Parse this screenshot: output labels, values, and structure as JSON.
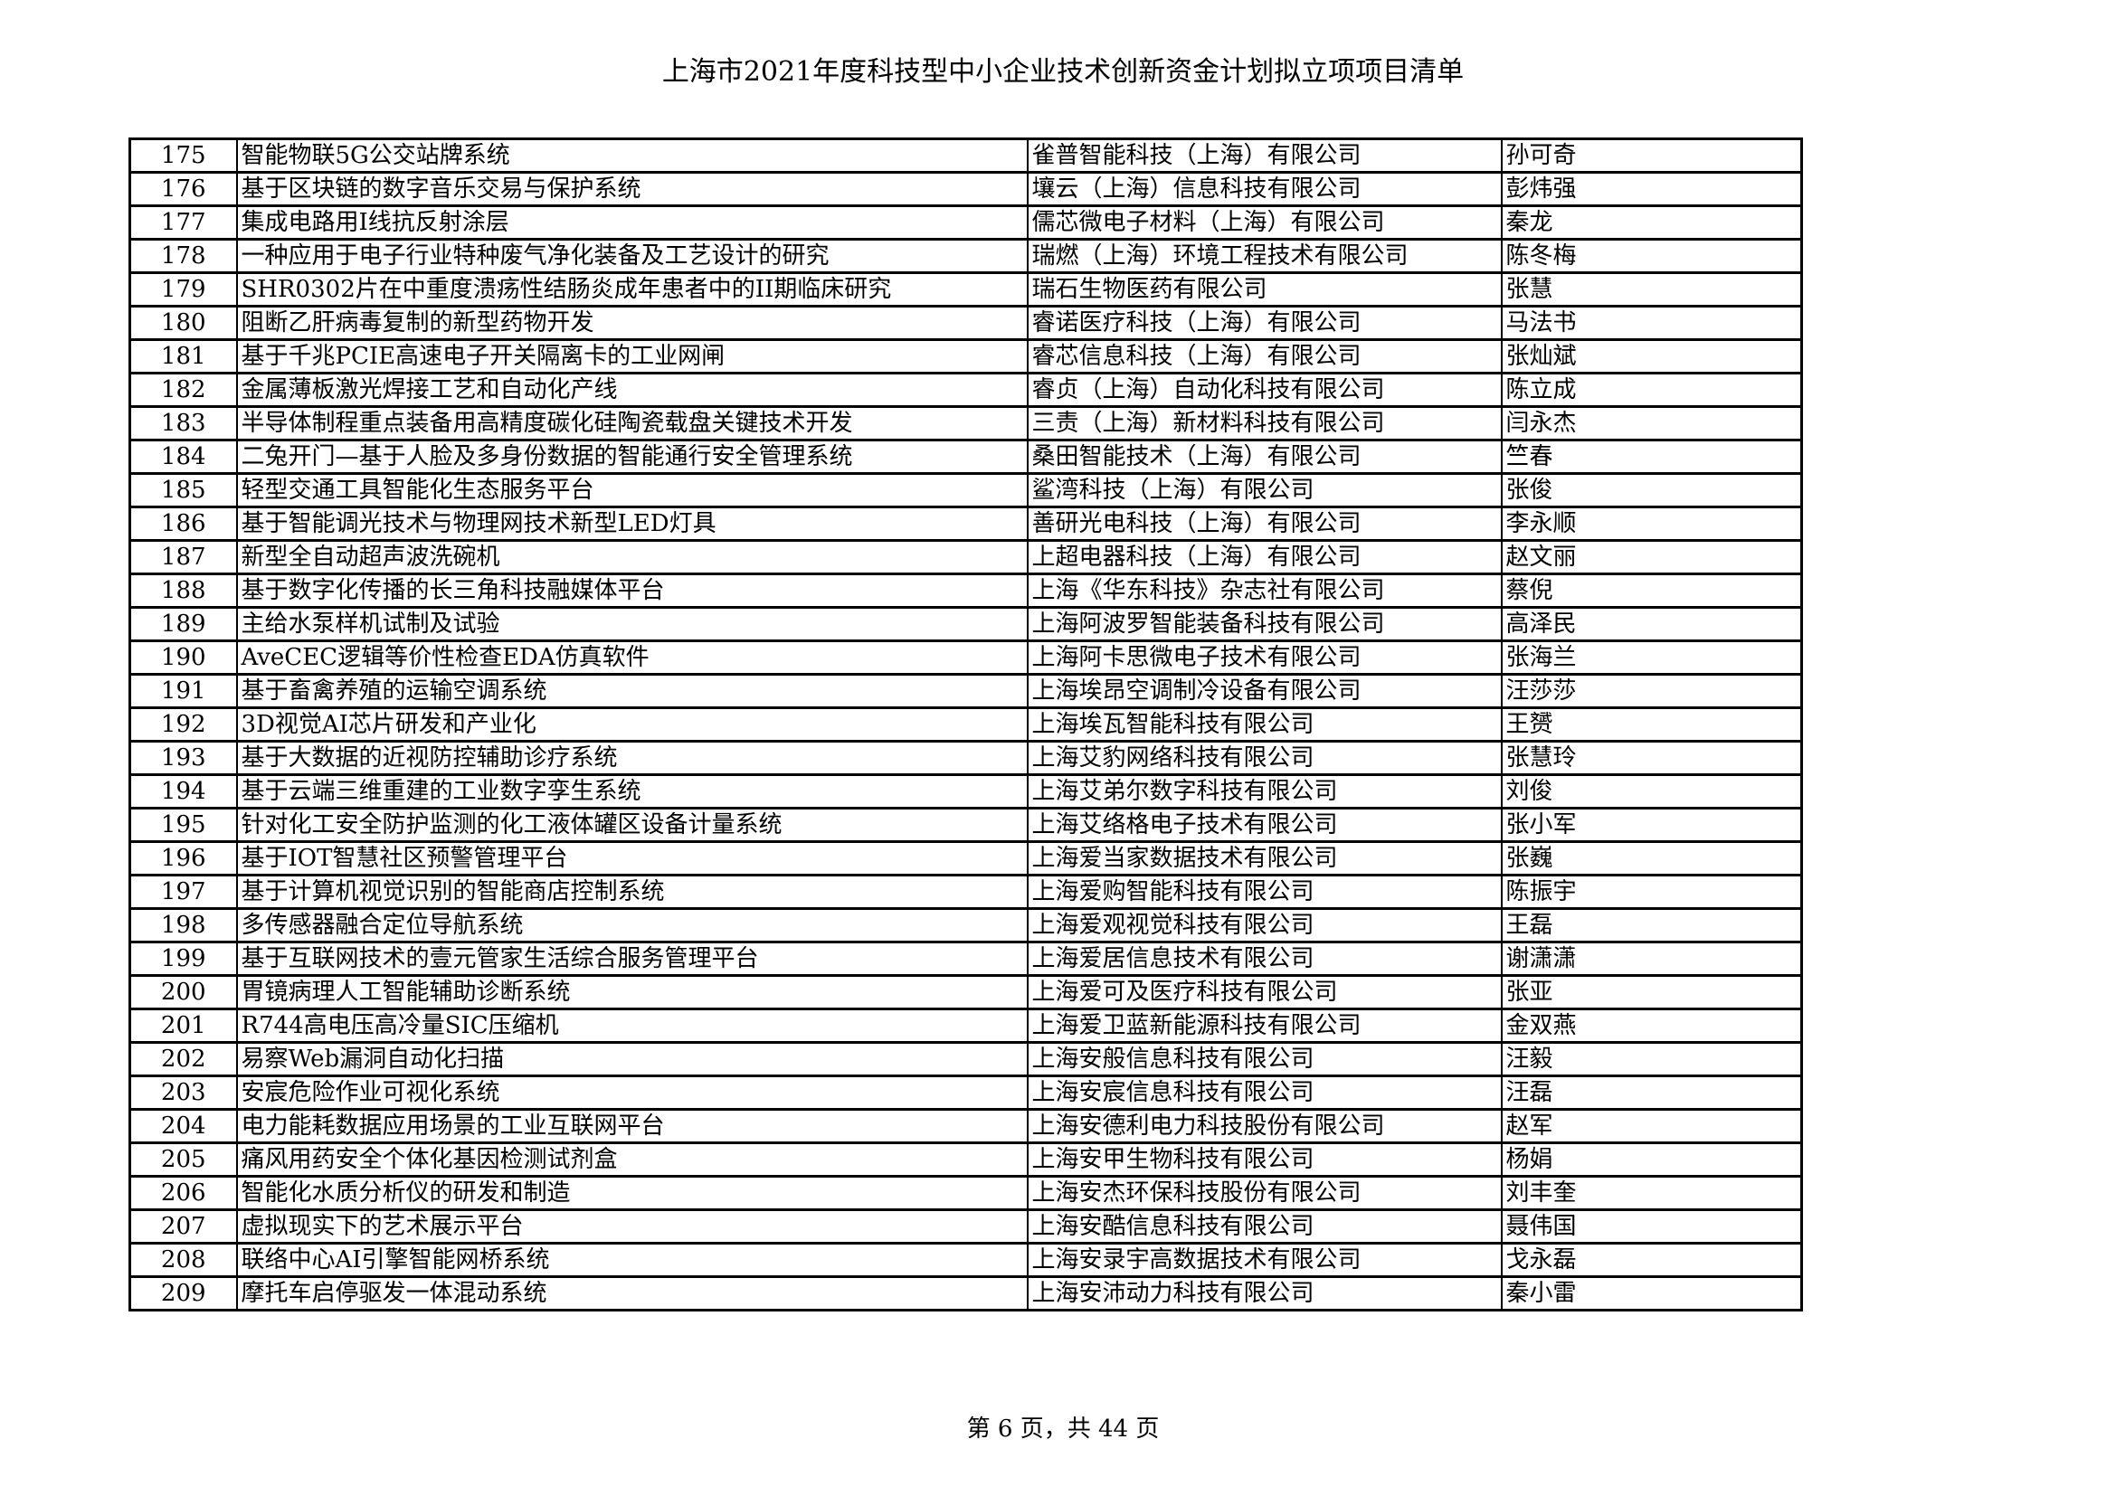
{
  "title": "上海市2021年度科技型中小企业技术创新资金计划拟立项项目清单",
  "footer": "第 6 页，共 44 页",
  "rows": [
    {
      "no": "175",
      "project": "智能物联5G公交站牌系统",
      "company": "雀普智能科技（上海）有限公司",
      "person": "孙可奇"
    },
    {
      "no": "176",
      "project": "基于区块链的数字音乐交易与保护系统",
      "company": "壤云（上海）信息科技有限公司",
      "person": "彭炜强"
    },
    {
      "no": "177",
      "project": "集成电路用I线抗反射涂层",
      "company": "儒芯微电子材料（上海）有限公司",
      "person": "秦龙"
    },
    {
      "no": "178",
      "project": "一种应用于电子行业特种废气净化装备及工艺设计的研究",
      "company": "瑞燃（上海）环境工程技术有限公司",
      "person": "陈冬梅"
    },
    {
      "no": "179",
      "project": "SHR0302片在中重度溃疡性结肠炎成年患者中的II期临床研究",
      "company": "瑞石生物医药有限公司",
      "person": "张慧"
    },
    {
      "no": "180",
      "project": "阻断乙肝病毒复制的新型药物开发",
      "company": "睿诺医疗科技（上海）有限公司",
      "person": "马法书"
    },
    {
      "no": "181",
      "project": "基于千兆PCIE高速电子开关隔离卡的工业网闸",
      "company": "睿芯信息科技（上海）有限公司",
      "person": "张灿斌"
    },
    {
      "no": "182",
      "project": "金属薄板激光焊接工艺和自动化产线",
      "company": "睿贞（上海）自动化科技有限公司",
      "person": "陈立成"
    },
    {
      "no": "183",
      "project": "半导体制程重点装备用高精度碳化硅陶瓷载盘关键技术开发",
      "company": "三责（上海）新材料科技有限公司",
      "person": "闫永杰"
    },
    {
      "no": "184",
      "project": "二兔开门—基于人脸及多身份数据的智能通行安全管理系统",
      "company": "桑田智能技术（上海）有限公司",
      "person": "竺春"
    },
    {
      "no": "185",
      "project": "轻型交通工具智能化生态服务平台",
      "company": "鲨湾科技（上海）有限公司",
      "person": "张俊"
    },
    {
      "no": "186",
      "project": "基于智能调光技术与物理网技术新型LED灯具",
      "company": "善研光电科技（上海）有限公司",
      "person": "李永顺"
    },
    {
      "no": "187",
      "project": "新型全自动超声波洗碗机",
      "company": "上超电器科技（上海）有限公司",
      "person": "赵文丽"
    },
    {
      "no": "188",
      "project": "基于数字化传播的长三角科技融媒体平台",
      "company": "上海《华东科技》杂志社有限公司",
      "person": "蔡倪"
    },
    {
      "no": "189",
      "project": "主给水泵样机试制及试验",
      "company": "上海阿波罗智能装备科技有限公司",
      "person": "高泽民"
    },
    {
      "no": "190",
      "project": "AveCEC逻辑等价性检查EDA仿真软件",
      "company": "上海阿卡思微电子技术有限公司",
      "person": "张海兰"
    },
    {
      "no": "191",
      "project": "基于畜禽养殖的运输空调系统",
      "company": "上海埃昂空调制冷设备有限公司",
      "person": "汪莎莎"
    },
    {
      "no": "192",
      "project": "3D视觉AI芯片研发和产业化",
      "company": "上海埃瓦智能科技有限公司",
      "person": "王赟"
    },
    {
      "no": "193",
      "project": "基于大数据的近视防控辅助诊疗系统",
      "company": "上海艾豹网络科技有限公司",
      "person": "张慧玲"
    },
    {
      "no": "194",
      "project": "基于云端三维重建的工业数字孪生系统",
      "company": "上海艾弟尔数字科技有限公司",
      "person": "刘俊"
    },
    {
      "no": "195",
      "project": "针对化工安全防护监测的化工液体罐区设备计量系统",
      "company": "上海艾络格电子技术有限公司",
      "person": "张小军"
    },
    {
      "no": "196",
      "project": "基于IOT智慧社区预警管理平台",
      "company": "上海爱当家数据技术有限公司",
      "person": "张巍"
    },
    {
      "no": "197",
      "project": "基于计算机视觉识别的智能商店控制系统",
      "company": "上海爱购智能科技有限公司",
      "person": "陈振宇"
    },
    {
      "no": "198",
      "project": "多传感器融合定位导航系统",
      "company": "上海爱观视觉科技有限公司",
      "person": "王磊"
    },
    {
      "no": "199",
      "project": "基于互联网技术的壹元管家生活综合服务管理平台",
      "company": "上海爱居信息技术有限公司",
      "person": "谢潇潇"
    },
    {
      "no": "200",
      "project": "胃镜病理人工智能辅助诊断系统",
      "company": "上海爱可及医疗科技有限公司",
      "person": "张亚"
    },
    {
      "no": "201",
      "project": "R744高电压高冷量SIC压缩机",
      "company": "上海爱卫蓝新能源科技有限公司",
      "person": "金双燕"
    },
    {
      "no": "202",
      "project": "易察Web漏洞自动化扫描",
      "company": "上海安般信息科技有限公司",
      "person": "汪毅"
    },
    {
      "no": "203",
      "project": "安宸危险作业可视化系统",
      "company": "上海安宸信息科技有限公司",
      "person": "汪磊"
    },
    {
      "no": "204",
      "project": "电力能耗数据应用场景的工业互联网平台",
      "company": "上海安德利电力科技股份有限公司",
      "person": "赵军"
    },
    {
      "no": "205",
      "project": "痛风用药安全个体化基因检测试剂盒",
      "company": "上海安甲生物科技有限公司",
      "person": "杨娟"
    },
    {
      "no": "206",
      "project": "智能化水质分析仪的研发和制造",
      "company": "上海安杰环保科技股份有限公司",
      "person": "刘丰奎"
    },
    {
      "no": "207",
      "project": "虚拟现实下的艺术展示平台",
      "company": "上海安酷信息科技有限公司",
      "person": "聂伟国"
    },
    {
      "no": "208",
      "project": "联络中心AI引擎智能网桥系统",
      "company": "上海安录宇高数据技术有限公司",
      "person": "戈永磊"
    },
    {
      "no": "209",
      "project": "摩托车启停驱发一体混动系统",
      "company": "上海安沛动力科技有限公司",
      "person": "秦小雷"
    }
  ]
}
